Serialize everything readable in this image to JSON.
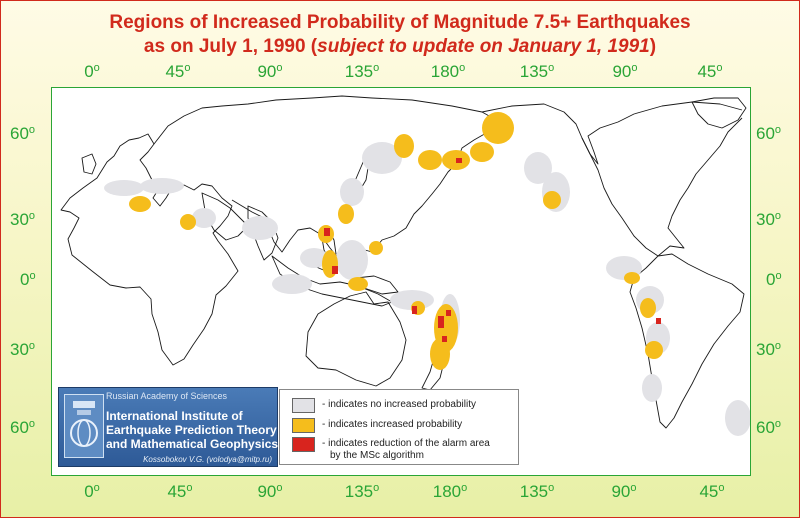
{
  "title": {
    "line1": "Regions of Increased Probability of Magnitude 7.5+ Earthquakes",
    "line2_prefix": "as on July 1, 1990 (",
    "line2_italic": "subject to update on January 1, 1991",
    "line2_suffix": ")"
  },
  "degree_mark": "o",
  "top_axis_labels": [
    "0",
    "45",
    "90",
    "135",
    "180",
    "135",
    "90",
    "45"
  ],
  "bottom_axis_labels": [
    "0",
    "45",
    "90",
    "135",
    "180",
    "135",
    "90",
    "45"
  ],
  "left_lat_labels": [
    "60",
    "30",
    "0",
    "30",
    "60"
  ],
  "right_lat_labels": [
    "60",
    "30",
    "0",
    "30",
    "60"
  ],
  "legend": {
    "items": [
      {
        "label": "- indicates no increased probability",
        "color": "#e2e2e6"
      },
      {
        "label": "- indicates increased probability",
        "color": "#f5bd1c"
      },
      {
        "label": "- indicates reduction of the alarm area",
        "label2": "by the MSc algorithm",
        "color": "#d8241e"
      }
    ]
  },
  "institute": {
    "parent": "Russian Academy of Sciences",
    "line1": "International Institute of",
    "line2": "Earthquake Prediction Theory",
    "line3": "and Mathematical Geophysics",
    "contact": "Kossobokov V.G. (volodya@mitp.ru)"
  },
  "colors": {
    "title": "#d12a1c",
    "axis_labels": "#2aa536",
    "no_increase": "#e2e2e6",
    "increase": "#f5bd1c",
    "reduction": "#d8241e"
  }
}
